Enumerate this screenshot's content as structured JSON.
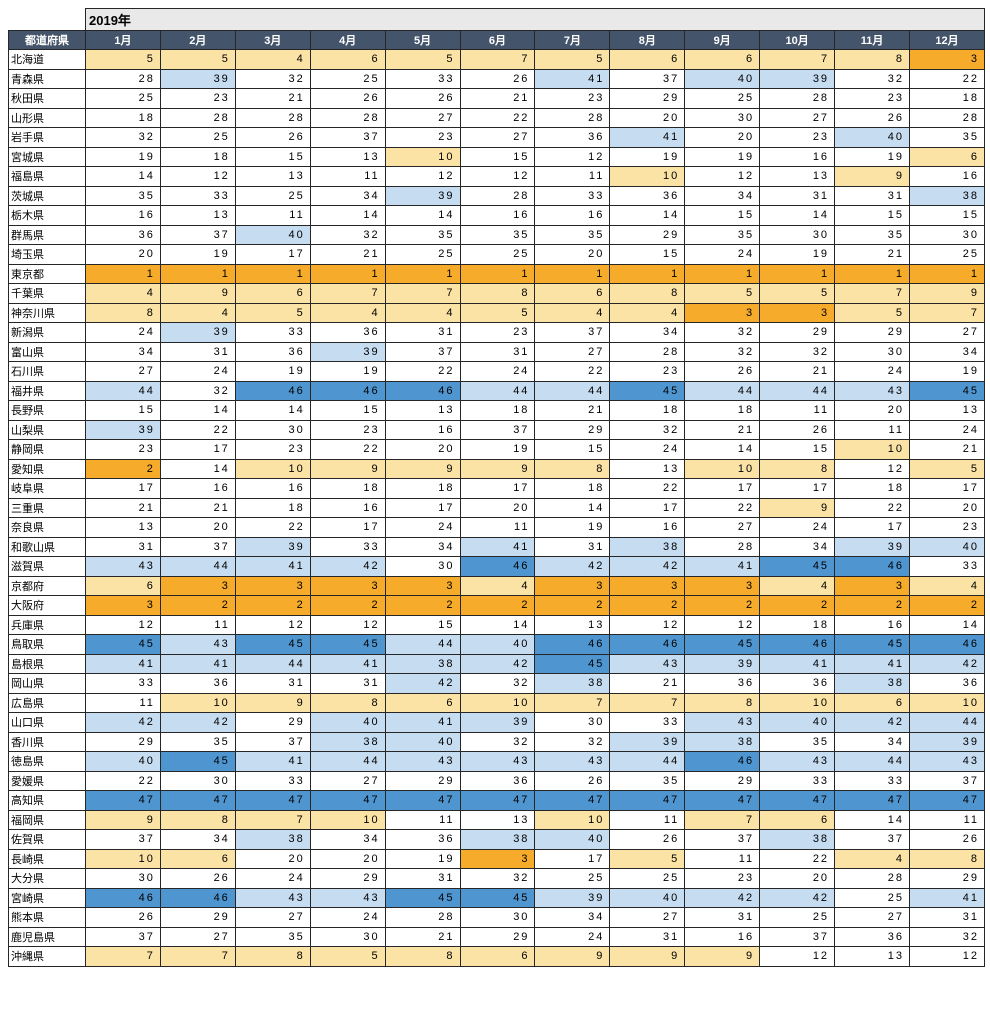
{
  "style": {
    "header_bg": "#44546A",
    "header_text": "#FFFFFF",
    "year_band_bg": "#E9E9E9",
    "border": "#262626",
    "cell_text": "#000000",
    "scale": [
      {
        "max": 3,
        "bg": "#F7AB2A"
      },
      {
        "max": 10,
        "bg": "#FBE3A6"
      },
      {
        "max": 37,
        "bg": "#FFFFFF"
      },
      {
        "max": 44,
        "bg": "#C6DCF1"
      },
      {
        "max": 47,
        "bg": "#4F96D1"
      }
    ]
  },
  "chart_data": {
    "type": "heatmap",
    "title": "2019年",
    "row_label_header": "都道府県",
    "columns": [
      "1月",
      "2月",
      "3月",
      "4月",
      "5月",
      "6月",
      "7月",
      "8月",
      "9月",
      "10月",
      "11月",
      "12月"
    ],
    "value_range": [
      1,
      47
    ],
    "legend": "1-3 amber, 4-10 cream, 11-37 white, 38-44 light blue, 45-47 blue",
    "rows": [
      {
        "prefecture": "北海道",
        "values": [
          5,
          5,
          4,
          6,
          5,
          7,
          5,
          6,
          6,
          7,
          8,
          3
        ]
      },
      {
        "prefecture": "青森県",
        "values": [
          28,
          39,
          32,
          25,
          33,
          26,
          41,
          37,
          40,
          39,
          32,
          22
        ]
      },
      {
        "prefecture": "秋田県",
        "values": [
          25,
          23,
          21,
          26,
          26,
          21,
          23,
          29,
          25,
          28,
          23,
          18
        ]
      },
      {
        "prefecture": "山形県",
        "values": [
          18,
          28,
          28,
          28,
          27,
          22,
          28,
          20,
          30,
          27,
          26,
          28
        ]
      },
      {
        "prefecture": "岩手県",
        "values": [
          32,
          25,
          26,
          37,
          23,
          27,
          36,
          41,
          20,
          23,
          40,
          35
        ]
      },
      {
        "prefecture": "宮城県",
        "values": [
          19,
          18,
          15,
          13,
          10,
          15,
          12,
          19,
          19,
          16,
          19,
          6
        ]
      },
      {
        "prefecture": "福島県",
        "values": [
          14,
          12,
          13,
          11,
          12,
          12,
          11,
          10,
          12,
          13,
          9,
          16
        ]
      },
      {
        "prefecture": "茨城県",
        "values": [
          35,
          33,
          25,
          34,
          39,
          28,
          33,
          36,
          34,
          31,
          31,
          38
        ]
      },
      {
        "prefecture": "栃木県",
        "values": [
          16,
          13,
          11,
          14,
          14,
          16,
          16,
          14,
          15,
          14,
          15,
          15
        ]
      },
      {
        "prefecture": "群馬県",
        "values": [
          36,
          37,
          40,
          32,
          35,
          35,
          35,
          29,
          35,
          30,
          35,
          30
        ]
      },
      {
        "prefecture": "埼玉県",
        "values": [
          20,
          19,
          17,
          21,
          25,
          25,
          20,
          15,
          24,
          19,
          21,
          25
        ]
      },
      {
        "prefecture": "東京都",
        "values": [
          1,
          1,
          1,
          1,
          1,
          1,
          1,
          1,
          1,
          1,
          1,
          1
        ]
      },
      {
        "prefecture": "千葉県",
        "values": [
          4,
          9,
          6,
          7,
          7,
          8,
          6,
          8,
          5,
          5,
          7,
          9
        ]
      },
      {
        "prefecture": "神奈川県",
        "values": [
          8,
          4,
          5,
          4,
          4,
          5,
          4,
          4,
          3,
          3,
          5,
          7
        ]
      },
      {
        "prefecture": "新潟県",
        "values": [
          24,
          39,
          33,
          36,
          31,
          23,
          37,
          34,
          32,
          29,
          29,
          27
        ]
      },
      {
        "prefecture": "富山県",
        "values": [
          34,
          31,
          36,
          39,
          37,
          31,
          27,
          28,
          32,
          32,
          30,
          34
        ]
      },
      {
        "prefecture": "石川県",
        "values": [
          27,
          24,
          19,
          19,
          22,
          24,
          22,
          23,
          26,
          21,
          24,
          19
        ]
      },
      {
        "prefecture": "福井県",
        "values": [
          44,
          32,
          46,
          46,
          46,
          44,
          44,
          45,
          44,
          44,
          43,
          45
        ]
      },
      {
        "prefecture": "長野県",
        "values": [
          15,
          14,
          14,
          15,
          13,
          18,
          21,
          18,
          18,
          11,
          20,
          13
        ]
      },
      {
        "prefecture": "山梨県",
        "values": [
          39,
          22,
          30,
          23,
          16,
          37,
          29,
          32,
          21,
          26,
          11,
          24
        ]
      },
      {
        "prefecture": "静岡県",
        "values": [
          23,
          17,
          23,
          22,
          20,
          19,
          15,
          24,
          14,
          15,
          10,
          21
        ]
      },
      {
        "prefecture": "愛知県",
        "values": [
          2,
          14,
          10,
          9,
          9,
          9,
          8,
          13,
          10,
          8,
          12,
          5
        ]
      },
      {
        "prefecture": "岐阜県",
        "values": [
          17,
          16,
          16,
          18,
          18,
          17,
          18,
          22,
          17,
          17,
          18,
          17
        ]
      },
      {
        "prefecture": "三重県",
        "values": [
          21,
          21,
          18,
          16,
          17,
          20,
          14,
          17,
          22,
          9,
          22,
          20
        ]
      },
      {
        "prefecture": "奈良県",
        "values": [
          13,
          20,
          22,
          17,
          24,
          11,
          19,
          16,
          27,
          24,
          17,
          23
        ]
      },
      {
        "prefecture": "和歌山県",
        "values": [
          31,
          37,
          39,
          33,
          34,
          41,
          31,
          38,
          28,
          34,
          39,
          40
        ]
      },
      {
        "prefecture": "滋賀県",
        "values": [
          43,
          44,
          41,
          42,
          30,
          46,
          42,
          42,
          41,
          45,
          46,
          33
        ]
      },
      {
        "prefecture": "京都府",
        "values": [
          6,
          3,
          3,
          3,
          3,
          4,
          3,
          3,
          3,
          4,
          3,
          4
        ]
      },
      {
        "prefecture": "大阪府",
        "values": [
          3,
          2,
          2,
          2,
          2,
          2,
          2,
          2,
          2,
          2,
          2,
          2
        ]
      },
      {
        "prefecture": "兵庫県",
        "values": [
          12,
          11,
          12,
          12,
          15,
          14,
          13,
          12,
          12,
          18,
          16,
          14
        ]
      },
      {
        "prefecture": "鳥取県",
        "values": [
          45,
          43,
          45,
          45,
          44,
          40,
          46,
          46,
          45,
          46,
          45,
          46
        ]
      },
      {
        "prefecture": "島根県",
        "values": [
          41,
          41,
          44,
          41,
          38,
          42,
          45,
          43,
          39,
          41,
          41,
          42
        ]
      },
      {
        "prefecture": "岡山県",
        "values": [
          33,
          36,
          31,
          31,
          42,
          32,
          38,
          21,
          36,
          36,
          38,
          36
        ]
      },
      {
        "prefecture": "広島県",
        "values": [
          11,
          10,
          9,
          8,
          6,
          10,
          7,
          7,
          8,
          10,
          6,
          10
        ]
      },
      {
        "prefecture": "山口県",
        "values": [
          42,
          42,
          29,
          40,
          41,
          39,
          30,
          33,
          43,
          40,
          42,
          44
        ]
      },
      {
        "prefecture": "香川県",
        "values": [
          29,
          35,
          37,
          38,
          40,
          32,
          32,
          39,
          38,
          35,
          34,
          39
        ]
      },
      {
        "prefecture": "徳島県",
        "values": [
          40,
          45,
          41,
          44,
          43,
          43,
          43,
          44,
          46,
          43,
          44,
          43
        ]
      },
      {
        "prefecture": "愛媛県",
        "values": [
          22,
          30,
          33,
          27,
          29,
          36,
          26,
          35,
          29,
          33,
          33,
          37
        ]
      },
      {
        "prefecture": "高知県",
        "values": [
          47,
          47,
          47,
          47,
          47,
          47,
          47,
          47,
          47,
          47,
          47,
          47
        ]
      },
      {
        "prefecture": "福岡県",
        "values": [
          9,
          8,
          7,
          10,
          11,
          13,
          10,
          11,
          7,
          6,
          14,
          11
        ]
      },
      {
        "prefecture": "佐賀県",
        "values": [
          37,
          34,
          38,
          34,
          36,
          38,
          40,
          26,
          37,
          38,
          37,
          26
        ]
      },
      {
        "prefecture": "長崎県",
        "values": [
          10,
          6,
          20,
          20,
          19,
          3,
          17,
          5,
          11,
          22,
          4,
          8
        ]
      },
      {
        "prefecture": "大分県",
        "values": [
          30,
          26,
          24,
          29,
          31,
          32,
          25,
          25,
          23,
          20,
          28,
          29
        ]
      },
      {
        "prefecture": "宮崎県",
        "values": [
          46,
          46,
          43,
          43,
          45,
          45,
          39,
          40,
          42,
          42,
          25,
          41
        ]
      },
      {
        "prefecture": "熊本県",
        "values": [
          26,
          29,
          27,
          24,
          28,
          30,
          34,
          27,
          31,
          25,
          27,
          31
        ]
      },
      {
        "prefecture": "鹿児島県",
        "values": [
          37,
          27,
          35,
          30,
          21,
          29,
          24,
          31,
          16,
          37,
          36,
          32
        ]
      },
      {
        "prefecture": "沖縄県",
        "values": [
          7,
          7,
          8,
          5,
          8,
          6,
          9,
          9,
          9,
          12,
          13,
          12
        ]
      }
    ]
  }
}
